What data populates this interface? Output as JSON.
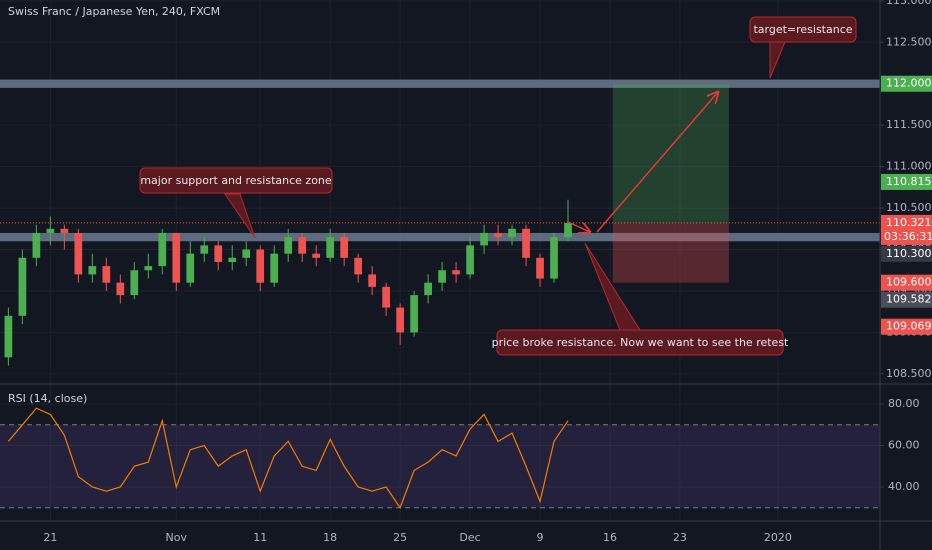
{
  "chart_data": [
    {
      "type": "candlestick",
      "title": "Swiss Franc / Japanese Yen, 240, FXCM",
      "x": [
        -3,
        -2,
        -1,
        0,
        1,
        2,
        3,
        4,
        5,
        6,
        7,
        8,
        9,
        10,
        11,
        12,
        13,
        14,
        15,
        16,
        17,
        18,
        19,
        20,
        21,
        22,
        23,
        24,
        25,
        26,
        27,
        28,
        29,
        30,
        31,
        32,
        33,
        34,
        35,
        36,
        37
      ],
      "open": [
        108.7,
        109.2,
        109.9,
        110.2,
        110.25,
        110.2,
        109.7,
        109.8,
        109.6,
        109.45,
        109.75,
        109.8,
        110.2,
        109.6,
        109.95,
        110.05,
        109.85,
        109.9,
        110.0,
        109.6,
        109.95,
        110.15,
        109.95,
        109.9,
        110.15,
        109.9,
        109.7,
        109.55,
        109.3,
        109.0,
        109.45,
        109.6,
        109.75,
        109.7,
        110.05,
        110.2,
        110.15,
        110.25,
        109.9,
        109.65,
        110.15
      ],
      "high": [
        109.3,
        110.0,
        110.3,
        110.4,
        110.3,
        110.25,
        109.95,
        109.9,
        109.7,
        109.85,
        109.95,
        110.25,
        110.2,
        110.1,
        110.15,
        110.1,
        110.05,
        110.1,
        110.05,
        110.05,
        110.25,
        110.2,
        110.05,
        110.25,
        110.2,
        109.95,
        109.8,
        109.6,
        109.35,
        109.5,
        109.7,
        109.85,
        109.85,
        110.15,
        110.3,
        110.3,
        110.3,
        110.3,
        109.95,
        110.2,
        110.6
      ],
      "low": [
        108.6,
        109.1,
        109.8,
        110.05,
        110.0,
        109.6,
        109.6,
        109.5,
        109.35,
        109.4,
        109.65,
        109.7,
        109.5,
        109.55,
        109.85,
        109.75,
        109.75,
        109.8,
        109.5,
        109.55,
        109.85,
        109.85,
        109.8,
        109.85,
        109.8,
        109.6,
        109.45,
        109.2,
        108.85,
        108.95,
        109.35,
        109.5,
        109.6,
        109.65,
        109.95,
        110.05,
        110.05,
        109.8,
        109.55,
        109.6,
        110.1
      ],
      "close": [
        109.2,
        109.9,
        110.2,
        110.25,
        110.2,
        109.7,
        109.8,
        109.6,
        109.45,
        109.75,
        109.8,
        110.2,
        109.6,
        109.95,
        110.05,
        109.85,
        109.9,
        110.0,
        109.6,
        109.95,
        110.15,
        109.95,
        109.9,
        110.15,
        109.9,
        109.7,
        109.55,
        109.3,
        109.0,
        109.45,
        109.6,
        109.75,
        109.7,
        110.05,
        110.2,
        110.15,
        110.25,
        109.9,
        109.65,
        110.15,
        110.32
      ],
      "up_color": "#4caf50",
      "down_color": "#ef5350",
      "xlim": [
        -3.6,
        59.3
      ],
      "ylim": [
        108.39,
        113.01
      ],
      "yticks": [
        {
          "value": 108.5,
          "label": "108.500"
        },
        {
          "value": 109,
          "label": "109.000"
        },
        {
          "value": 109.5,
          "label": "109.500"
        },
        {
          "value": 110,
          "label": "110.000"
        },
        {
          "value": 110.5,
          "label": "110.500"
        },
        {
          "value": 111,
          "label": "111.000"
        },
        {
          "value": 111.5,
          "label": "111.500"
        },
        {
          "value": 112,
          "label": "112.000"
        },
        {
          "value": 112.5,
          "label": "112.500"
        },
        {
          "value": 113,
          "label": "113.000"
        }
      ],
      "zones": [
        {
          "low": 111.95,
          "high": 112.05
        },
        {
          "low": 110.1,
          "high": 110.2
        }
      ],
      "last_price": 110.321,
      "position": {
        "x0": 40.2,
        "x1": 48.5,
        "entry": 110.321,
        "target": 112,
        "stop": 109.6
      },
      "price_tags": [
        {
          "value": 112,
          "label": "112.000",
          "color": "#4caf50"
        },
        {
          "value": 110.815,
          "label": "110.815",
          "color": "#4caf50"
        },
        {
          "value": 110.321,
          "label": "110.321",
          "color": "#ef5350",
          "sublabel": "03:36:31"
        },
        {
          "value": 110.3,
          "label": "110.300",
          "color": "#363a45"
        },
        {
          "value": 109.6,
          "label": "109.600",
          "color": "#ef5350"
        },
        {
          "value": 109.582,
          "label": "109.582",
          "color": "#4a4e5a"
        },
        {
          "value": 109.069,
          "label": "109.069",
          "color": "#ef5350"
        }
      ],
      "annotations": [
        "target=resistance",
        "major support and resistance zone",
        "price broke resistance. Now we want to see the retest"
      ]
    },
    {
      "type": "line",
      "title": "RSI (14, close)",
      "x": [
        -3,
        -2,
        -1,
        0,
        1,
        2,
        3,
        4,
        5,
        6,
        7,
        8,
        9,
        10,
        11,
        12,
        13,
        14,
        15,
        16,
        17,
        18,
        19,
        20,
        21,
        22,
        23,
        24,
        25,
        26,
        27,
        28,
        29,
        30,
        31,
        32,
        33,
        34,
        35,
        36,
        37
      ],
      "values": [
        62,
        70,
        78,
        75,
        65,
        45,
        40,
        38,
        40,
        50,
        52,
        72,
        40,
        58,
        60,
        50,
        55,
        58,
        38,
        55,
        62,
        50,
        48,
        63,
        50,
        40,
        38,
        40,
        30,
        48,
        52,
        58,
        55,
        68,
        75,
        62,
        66,
        50,
        33,
        62,
        72
      ],
      "color": "#f57c00",
      "levels": [
        70,
        30
      ],
      "xlim": [
        -3.6,
        59.3
      ],
      "ylim": [
        23.6,
        89.2
      ],
      "yticks": [
        {
          "value": 40,
          "label": "40.00"
        },
        {
          "value": 60,
          "label": "60.00"
        },
        {
          "value": 80,
          "label": "80.00"
        }
      ],
      "xticks": [
        {
          "value": 0,
          "label": "21"
        },
        {
          "value": 9,
          "label": "Nov"
        },
        {
          "value": 15,
          "label": "11"
        },
        {
          "value": 20,
          "label": "18"
        },
        {
          "value": 25,
          "label": "25"
        },
        {
          "value": 30,
          "label": "Dec"
        },
        {
          "value": 35,
          "label": "9"
        },
        {
          "value": 40,
          "label": "16"
        },
        {
          "value": 45,
          "label": "23"
        },
        {
          "value": 52,
          "label": "2020"
        }
      ]
    }
  ]
}
